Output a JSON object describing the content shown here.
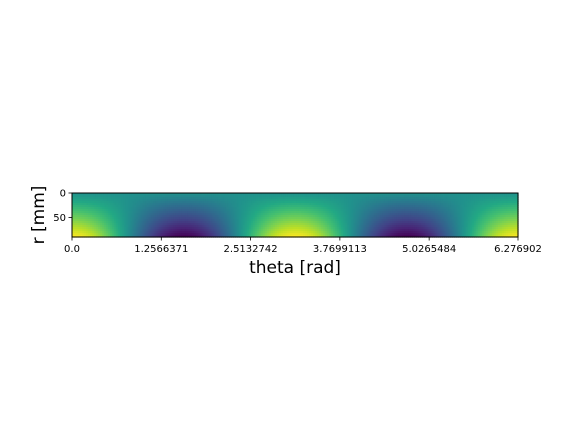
{
  "chart_data": {
    "type": "heatmap",
    "title": "",
    "xlabel": "theta [rad]",
    "ylabel": "r [mm]",
    "x_range": [
      0.0,
      6.276902
    ],
    "y_range": [
      0,
      90
    ],
    "y_inverted": true,
    "x_ticks": [
      "0.0",
      "1.2566371",
      "2.5132742",
      "3.7699113",
      "5.0265484",
      "6.276902"
    ],
    "x_tick_values": [
      0.0,
      1.2566371,
      2.5132742,
      3.7699113,
      5.0265484,
      6.276902
    ],
    "y_ticks": [
      "0",
      "50"
    ],
    "y_tick_values": [
      0,
      50
    ],
    "colormap": "viridis",
    "function": "z = r * cos(2 * theta)",
    "grid": false,
    "legend": "none"
  }
}
